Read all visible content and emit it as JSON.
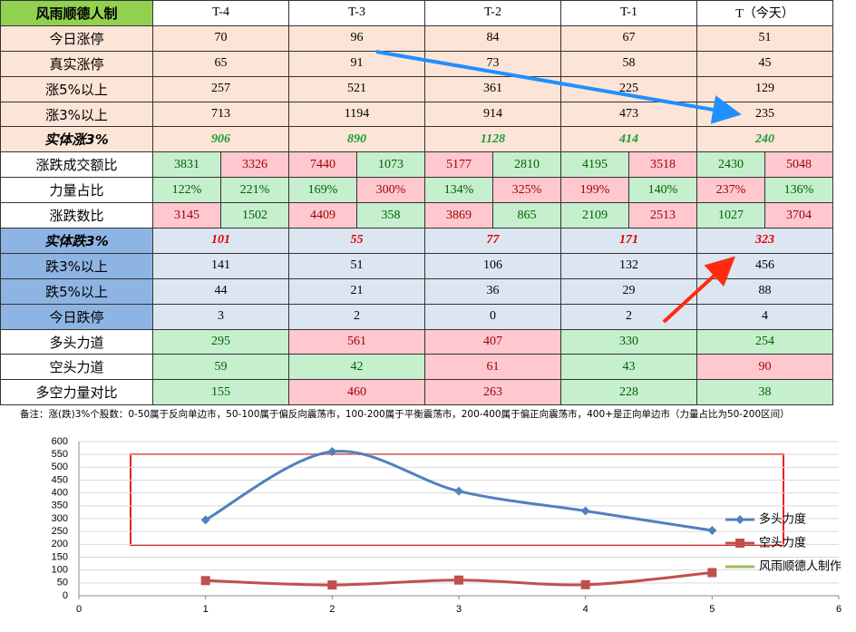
{
  "table": {
    "header": [
      "风雨顺德人制",
      "T-4",
      "T-3",
      "T-2",
      "T-1",
      "T（今天）"
    ],
    "rows": [
      {
        "label": "今日涨停",
        "values": [
          70,
          96,
          84,
          67,
          51
        ],
        "fills": [
          "#fce4d6",
          "#fce4d6",
          "#fce4d6",
          "#fce4d6",
          "#fce4d6"
        ],
        "label_fill": "#fce4d6"
      },
      {
        "label": "真实涨停",
        "values": [
          65,
          91,
          73,
          58,
          45
        ],
        "fills": [
          "#fce4d6",
          "#fce4d6",
          "#fce4d6",
          "#fce4d6",
          "#fce4d6"
        ],
        "label_fill": "#fce4d6"
      },
      {
        "label": "涨5%以上",
        "values": [
          257,
          521,
          361,
          225,
          129
        ],
        "fills": [
          "#fce4d6",
          "#fce4d6",
          "#fce4d6",
          "#fce4d6",
          "#fce4d6"
        ],
        "label_fill": "#fce4d6"
      },
      {
        "label": "涨3%以上",
        "values": [
          713,
          1194,
          914,
          473,
          235
        ],
        "fills": [
          "#fce4d6",
          "#fce4d6",
          "#fce4d6",
          "#fce4d6",
          "#fce4d6"
        ],
        "label_fill": "#fce4d6"
      },
      {
        "label": "实体涨3%",
        "values": [
          906,
          890,
          1128,
          414,
          240
        ],
        "fills": [
          "#fce4d6",
          "#fce4d6",
          "#fce4d6",
          "#fce4d6",
          "#fce4d6"
        ],
        "label_fill": "#fce4d6",
        "emphasis": "#1e9b3a"
      },
      {
        "label": "涨跌成交额比",
        "values": [
          3831,
          3326,
          7440,
          1073,
          5177,
          2810,
          4195,
          3518,
          2430,
          5048
        ],
        "fills": [
          "#c6efce",
          "#ffc7ce",
          "#ffc7ce",
          "#c6efce",
          "#ffc7ce",
          "#c6efce",
          "#c6efce",
          "#ffc7ce",
          "#c6efce",
          "#ffc7ce"
        ],
        "label_fill": "#ffffff"
      },
      {
        "label": "力量占比",
        "values": [
          "122%",
          "221%",
          "169%",
          "300%",
          "134%",
          "325%",
          "199%",
          "140%",
          "237%",
          "136%"
        ],
        "fills": [
          "#c6efce",
          "#c6efce",
          "#c6efce",
          "#ffc7ce",
          "#c6efce",
          "#ffc7ce",
          "#ffc7ce",
          "#c6efce",
          "#ffc7ce",
          "#c6efce"
        ],
        "label_fill": "#ffffff"
      },
      {
        "label": "涨跌数比",
        "values": [
          3145,
          1502,
          4409,
          358,
          3869,
          865,
          2109,
          2513,
          1027,
          3704
        ],
        "fills": [
          "#ffc7ce",
          "#c6efce",
          "#ffc7ce",
          "#c6efce",
          "#ffc7ce",
          "#c6efce",
          "#c6efce",
          "#ffc7ce",
          "#c6efce",
          "#ffc7ce"
        ],
        "label_fill": "#ffffff"
      },
      {
        "label": "实体跌3%",
        "values": [
          101,
          55,
          77,
          171,
          323
        ],
        "fills": [
          "#dce6f1",
          "#dce6f1",
          "#dce6f1",
          "#dce6f1",
          "#dce6f1"
        ],
        "label_fill": "#8eb4e3",
        "emphasis": "#e00000"
      },
      {
        "label": "跌3%以上",
        "values": [
          141,
          51,
          106,
          132,
          456
        ],
        "fills": [
          "#dce6f1",
          "#dce6f1",
          "#dce6f1",
          "#dce6f1",
          "#dce6f1"
        ],
        "label_fill": "#8eb4e3"
      },
      {
        "label": "跌5%以上",
        "values": [
          44,
          21,
          36,
          29,
          88
        ],
        "fills": [
          "#dce6f1",
          "#dce6f1",
          "#dce6f1",
          "#dce6f1",
          "#dce6f1"
        ],
        "label_fill": "#8eb4e3"
      },
      {
        "label": "今日跌停",
        "values": [
          3,
          2,
          0,
          2,
          4
        ],
        "fills": [
          "#dce6f1",
          "#dce6f1",
          "#dce6f1",
          "#dce6f1",
          "#dce6f1"
        ],
        "label_fill": "#8eb4e3"
      },
      {
        "label": "多头力道",
        "values": [
          295,
          561,
          407,
          330,
          254
        ],
        "fills": [
          "#c6efce",
          "#ffc7ce",
          "#ffc7ce",
          "#c6efce",
          "#c6efce"
        ],
        "label_fill": "#ffffff"
      },
      {
        "label": "空头力道",
        "values": [
          59,
          42,
          61,
          43,
          90
        ],
        "fills": [
          "#c6efce",
          "#c6efce",
          "#ffc7ce",
          "#c6efce",
          "#ffc7ce"
        ],
        "label_fill": "#ffffff"
      },
      {
        "label": "多空力量对比",
        "values": [
          155,
          460,
          263,
          228,
          38
        ],
        "fills": [
          "#c6efce",
          "#ffc7ce",
          "#ffc7ce",
          "#c6efce",
          "#c6efce"
        ],
        "label_fill": "#ffffff"
      }
    ],
    "note": "备注：涨(跌)3%个股数：0-50属于反向单边市，50-100属于偏反向震荡市，100-200属于平衡震荡市，200-400属于偏正向震荡市，400+是正向单边市（力量占比为50-200区间）"
  },
  "chart_data": {
    "type": "line",
    "x": [
      1,
      2,
      3,
      4,
      5
    ],
    "series": [
      {
        "name": "多头力度",
        "color": "#4f81bd",
        "values": [
          295,
          561,
          407,
          330,
          254
        ]
      },
      {
        "name": "空头力度",
        "color": "#c0504d",
        "values": [
          59,
          42,
          61,
          43,
          90
        ]
      },
      {
        "name": "风雨顺德人制作",
        "color": "#9bbb59",
        "values": [
          null,
          null,
          null,
          null,
          null
        ]
      }
    ],
    "xlim": [
      0,
      6
    ],
    "xticks": [
      0,
      1,
      2,
      3,
      4,
      5,
      6
    ],
    "ylim": [
      0,
      600
    ],
    "yticks": [
      0,
      50,
      100,
      150,
      200,
      250,
      300,
      350,
      400,
      450,
      500,
      550,
      600
    ],
    "grid": true,
    "legend": "right"
  }
}
